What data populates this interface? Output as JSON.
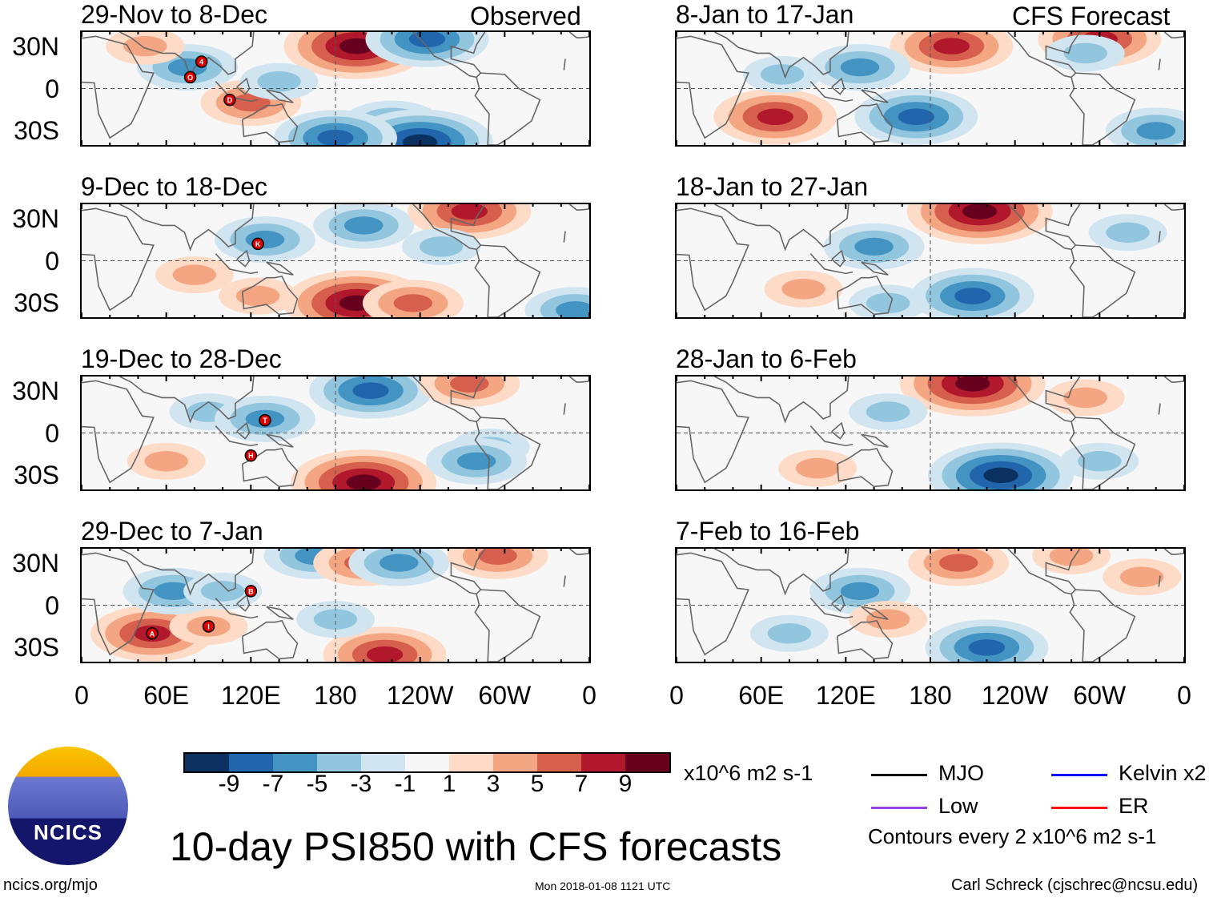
{
  "headers": {
    "left": "Observed",
    "right": "CFS Forecast"
  },
  "lat_labels": [
    "30N",
    "0",
    "30S"
  ],
  "lon_labels": [
    "0",
    "60E",
    "120E",
    "180",
    "120W",
    "60W",
    "0"
  ],
  "colorbar": {
    "levels": [
      "-9",
      "-7",
      "-5",
      "-3",
      "-1",
      "1",
      "3",
      "5",
      "7",
      "9"
    ],
    "colors": [
      "#0b3160",
      "#2166ac",
      "#4393c3",
      "#92c5de",
      "#d1e5f0",
      "#f7f7f7",
      "#fddbc7",
      "#f4a582",
      "#d6604d",
      "#b2182b",
      "#67001f"
    ],
    "units": "x10^6 m2 s-1"
  },
  "legend": [
    {
      "label": "MJO",
      "color": "#000000"
    },
    {
      "label": "Kelvin x2",
      "color": "#1010ff"
    },
    {
      "label": "Low",
      "color": "#9b40e0"
    },
    {
      "label": "ER",
      "color": "#ff1010"
    }
  ],
  "contour_note": "Contours every 2 x10^6 m2 s-1",
  "title": "10-day PSI850 with CFS forecasts",
  "logo_text": "NCICS",
  "footer": {
    "url": "ncics.org/mjo",
    "timestamp": "Mon 2018-01-08 1121 UTC",
    "author": "Carl Schreck (cjschrec@ncsu.edu)"
  },
  "panels": [
    {
      "period": "29-Nov to 8-Dec",
      "anomalies": [
        [
          75,
          15,
          -5
        ],
        [
          195,
          30,
          9
        ],
        [
          245,
          35,
          -7
        ],
        [
          120,
          -10,
          5
        ],
        [
          220,
          -25,
          -5
        ],
        [
          240,
          -38,
          -9
        ],
        [
          180,
          -35,
          -7
        ],
        [
          45,
          30,
          3
        ],
        [
          140,
          5,
          -3
        ]
      ],
      "storms": [
        [
          "4",
          85,
          19
        ],
        [
          "O",
          77,
          8
        ],
        [
          "D",
          105,
          -8
        ]
      ]
    },
    {
      "period": "9-Dec to 18-Dec",
      "anomalies": [
        [
          130,
          15,
          -5
        ],
        [
          200,
          25,
          -5
        ],
        [
          275,
          35,
          7
        ],
        [
          195,
          -30,
          9
        ],
        [
          235,
          -30,
          5
        ],
        [
          125,
          -25,
          3
        ],
        [
          255,
          10,
          -3
        ],
        [
          80,
          -10,
          3
        ],
        [
          350,
          -35,
          -5
        ]
      ],
      "storms": [
        [
          "K",
          125,
          12
        ]
      ]
    },
    {
      "period": "19-Dec to 28-Dec",
      "anomalies": [
        [
          205,
          30,
          -7
        ],
        [
          275,
          35,
          5
        ],
        [
          200,
          -35,
          9
        ],
        [
          90,
          15,
          -3
        ],
        [
          130,
          10,
          -5
        ],
        [
          290,
          -10,
          -3
        ],
        [
          280,
          -20,
          -5
        ],
        [
          60,
          -20,
          3
        ]
      ],
      "storms": [
        [
          "T",
          130,
          9
        ],
        [
          "H",
          120,
          -16
        ]
      ]
    },
    {
      "period": "29-Dec to 7-Jan",
      "anomalies": [
        [
          165,
          35,
          -5
        ],
        [
          200,
          30,
          5
        ],
        [
          225,
          30,
          -5
        ],
        [
          295,
          35,
          5
        ],
        [
          50,
          -20,
          7
        ],
        [
          90,
          -15,
          3
        ],
        [
          215,
          -35,
          7
        ],
        [
          65,
          10,
          -5
        ],
        [
          180,
          -10,
          -3
        ],
        [
          100,
          10,
          -3
        ]
      ],
      "storms": [
        [
          "B",
          120,
          10
        ],
        [
          "A",
          50,
          -20
        ],
        [
          "I",
          90,
          -15
        ]
      ]
    },
    {
      "period": "8-Jan to 17-Jan",
      "anomalies": [
        [
          195,
          30,
          7
        ],
        [
          300,
          35,
          7
        ],
        [
          70,
          -20,
          7
        ],
        [
          170,
          -20,
          -7
        ],
        [
          75,
          10,
          -3
        ],
        [
          340,
          -30,
          -5
        ],
        [
          130,
          15,
          -5
        ],
        [
          290,
          25,
          -3
        ]
      ],
      "storms": []
    },
    {
      "period": "18-Jan to 27-Jan",
      "anomalies": [
        [
          215,
          35,
          9
        ],
        [
          140,
          10,
          -5
        ],
        [
          210,
          -25,
          -7
        ],
        [
          90,
          -20,
          3
        ],
        [
          320,
          20,
          -3
        ],
        [
          150,
          -30,
          -3
        ]
      ],
      "storms": []
    },
    {
      "period": "28-Jan to 6-Feb",
      "anomalies": [
        [
          210,
          35,
          9
        ],
        [
          150,
          15,
          -3
        ],
        [
          230,
          -30,
          -9
        ],
        [
          100,
          -25,
          3
        ],
        [
          290,
          25,
          3
        ],
        [
          300,
          -20,
          -3
        ]
      ],
      "storms": []
    },
    {
      "period": "7-Feb to 16-Feb",
      "anomalies": [
        [
          200,
          30,
          5
        ],
        [
          280,
          35,
          3
        ],
        [
          130,
          10,
          -5
        ],
        [
          220,
          -30,
          -7
        ],
        [
          330,
          20,
          3
        ],
        [
          150,
          -10,
          3
        ],
        [
          80,
          -20,
          -3
        ]
      ],
      "storms": []
    }
  ]
}
